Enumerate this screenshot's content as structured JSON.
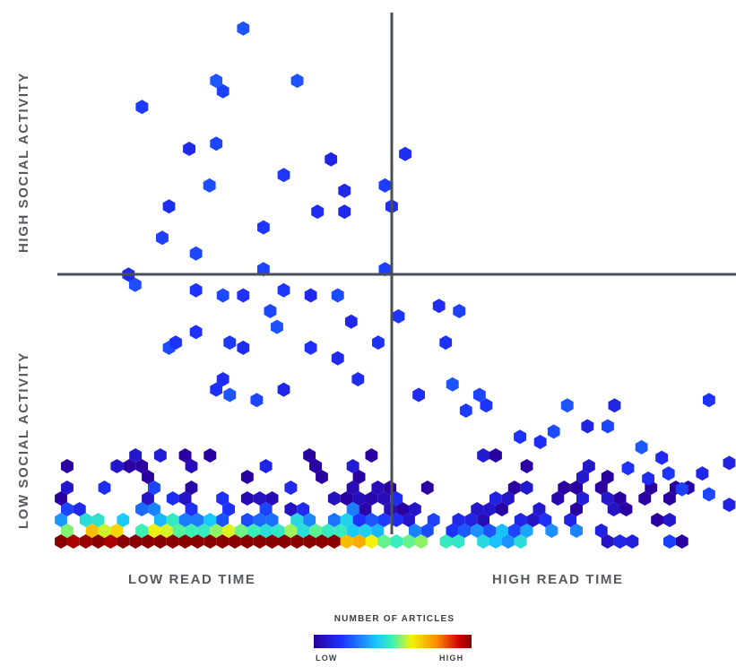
{
  "chart_data": {
    "type": "heatmap",
    "subtype": "hexbin-scatter",
    "quadrants": {
      "top_left": "HIGH SOCIAL ACTIVITY",
      "bottom_left_y": "LOW SOCIAL ACTIVITY",
      "bottom_left_x": "LOW READ TIME",
      "bottom_right_x": "HIGH READ TIME"
    },
    "divider": {
      "x": 0.5,
      "y": 0.5
    },
    "legend": {
      "title": "NUMBER OF ARTICLES",
      "low": "LOW",
      "high": "HIGH"
    },
    "colorscale": [
      "#2a00a0",
      "#1d33ff",
      "#19c8ff",
      "#3df2b0",
      "#f2f20a",
      "#ff8a00",
      "#d00000",
      "#8a0000"
    ],
    "sparse_points": [
      [
        0.27,
        0.98
      ],
      [
        0.12,
        0.83
      ],
      [
        0.23,
        0.88
      ],
      [
        0.24,
        0.86
      ],
      [
        0.35,
        0.88
      ],
      [
        0.19,
        0.75
      ],
      [
        0.23,
        0.76
      ],
      [
        0.4,
        0.73
      ],
      [
        0.51,
        0.74
      ],
      [
        0.33,
        0.7
      ],
      [
        0.16,
        0.64
      ],
      [
        0.22,
        0.68
      ],
      [
        0.3,
        0.6
      ],
      [
        0.38,
        0.63
      ],
      [
        0.42,
        0.67
      ],
      [
        0.42,
        0.63
      ],
      [
        0.49,
        0.64
      ],
      [
        0.48,
        0.68
      ],
      [
        0.15,
        0.58
      ],
      [
        0.2,
        0.55
      ],
      [
        0.3,
        0.52
      ],
      [
        0.48,
        0.52
      ],
      [
        0.1,
        0.51
      ],
      [
        0.11,
        0.49
      ],
      [
        0.2,
        0.48
      ],
      [
        0.24,
        0.47
      ],
      [
        0.27,
        0.47
      ],
      [
        0.33,
        0.48
      ],
      [
        0.37,
        0.47
      ],
      [
        0.41,
        0.47
      ],
      [
        0.56,
        0.45
      ],
      [
        0.59,
        0.44
      ],
      [
        0.5,
        0.43
      ],
      [
        0.43,
        0.42
      ],
      [
        0.31,
        0.44
      ],
      [
        0.32,
        0.41
      ],
      [
        0.2,
        0.4
      ],
      [
        0.16,
        0.37
      ],
      [
        0.17,
        0.38
      ],
      [
        0.25,
        0.38
      ],
      [
        0.27,
        0.37
      ],
      [
        0.37,
        0.37
      ],
      [
        0.41,
        0.35
      ],
      [
        0.47,
        0.38
      ],
      [
        0.57,
        0.38
      ],
      [
        0.96,
        0.27
      ],
      [
        0.58,
        0.3
      ],
      [
        0.62,
        0.28
      ],
      [
        0.75,
        0.26
      ],
      [
        0.82,
        0.26
      ],
      [
        0.73,
        0.21
      ],
      [
        0.86,
        0.18
      ],
      [
        0.89,
        0.16
      ],
      [
        0.95,
        0.13
      ],
      [
        0.99,
        0.15
      ],
      [
        0.96,
        0.09
      ],
      [
        0.99,
        0.07
      ],
      [
        0.23,
        0.29
      ],
      [
        0.24,
        0.31
      ],
      [
        0.25,
        0.28
      ],
      [
        0.29,
        0.27
      ],
      [
        0.33,
        0.29
      ],
      [
        0.44,
        0.31
      ],
      [
        0.53,
        0.28
      ],
      [
        0.6,
        0.25
      ],
      [
        0.63,
        0.26
      ],
      [
        0.68,
        0.2
      ],
      [
        0.71,
        0.19
      ],
      [
        0.78,
        0.22
      ],
      [
        0.81,
        0.22
      ],
      [
        0.84,
        0.14
      ],
      [
        0.87,
        0.12
      ],
      [
        0.9,
        0.13
      ],
      [
        0.92,
        0.1
      ]
    ]
  }
}
